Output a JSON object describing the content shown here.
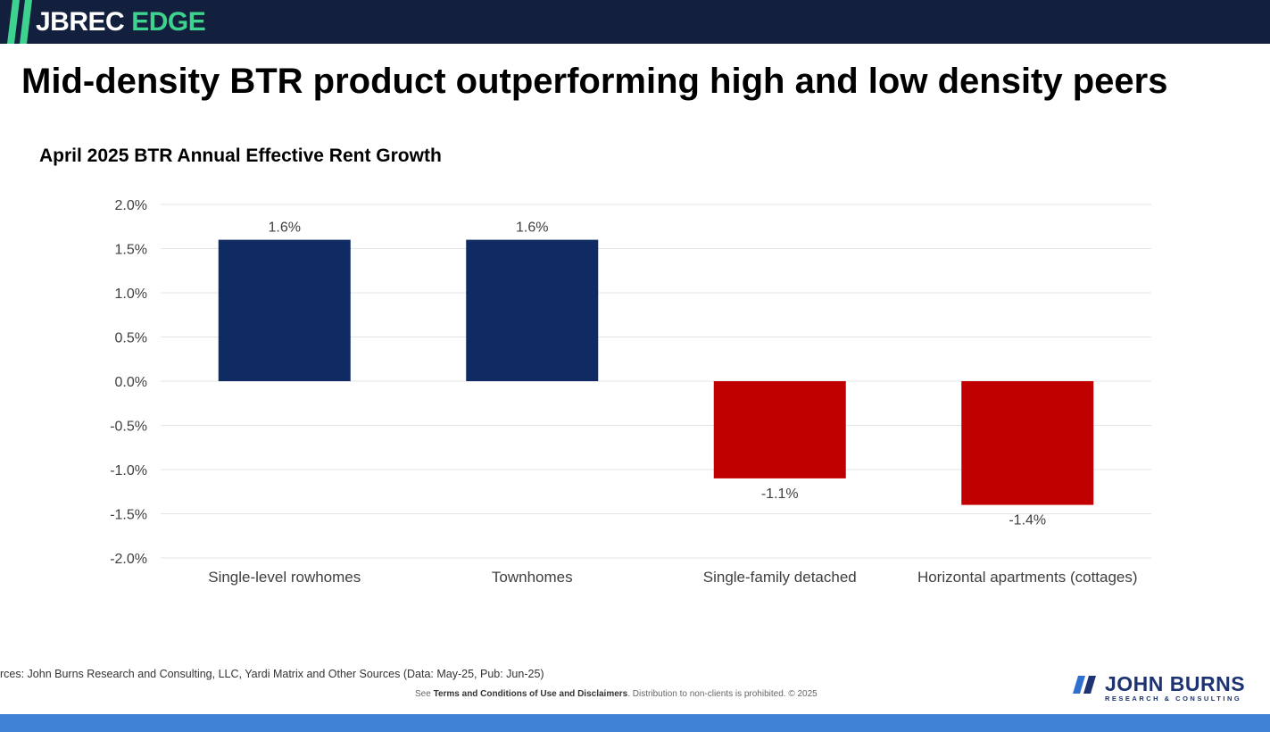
{
  "header": {
    "logo_primary": "JBREC",
    "logo_accent": "EDGE"
  },
  "slide_title": "Mid-density BTR product outperforming high and low density peers",
  "chart_data": {
    "type": "bar",
    "title": "April 2025 BTR Annual Effective Rent Growth",
    "categories": [
      "Single-level rowhomes",
      "Townhomes",
      "Single-family detached",
      "Horizontal apartments (cottages)"
    ],
    "values": [
      1.6,
      1.6,
      -1.1,
      -1.4
    ],
    "value_labels": [
      "1.6%",
      "1.6%",
      "-1.1%",
      "-1.4%"
    ],
    "colors": [
      "#102a63",
      "#102a63",
      "#c00000",
      "#c00000"
    ],
    "ylim": [
      -2.0,
      2.0
    ],
    "yticks": [
      "2.0%",
      "1.5%",
      "1.0%",
      "0.5%",
      "0.0%",
      "-0.5%",
      "-1.0%",
      "-1.5%",
      "-2.0%"
    ],
    "ytick_values": [
      2.0,
      1.5,
      1.0,
      0.5,
      0.0,
      -0.5,
      -1.0,
      -1.5,
      -2.0
    ],
    "grid": true,
    "legend": "none"
  },
  "footer": {
    "source": "rces: John Burns Research and Consulting, LLC, Yardi Matrix and Other Sources (Data: May-25, Pub: Jun-25)",
    "terms_prefix": "See ",
    "terms_link": "Terms and Conditions of Use and Disclaimers",
    "terms_suffix": ". Distribution to non-clients is prohibited. © 2025",
    "brand_name": "JOHN BURNS",
    "brand_sub": "RESEARCH & CONSULTING"
  },
  "colors": {
    "header_bg": "#13203d",
    "accent_green": "#3dd38f",
    "brand_blue": "#1d3372",
    "bottom_bar": "#3f82d6"
  }
}
